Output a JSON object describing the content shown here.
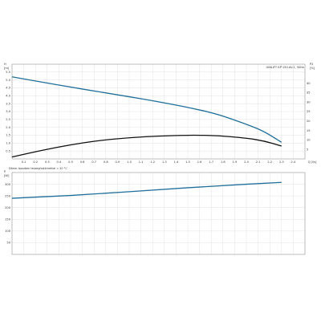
{
  "chart_data": [
    {
      "type": "line",
      "name": "pump-curve",
      "legend": "UNILIFT KP 150.AV.1, 50Hz",
      "x_unit": "Q [l/s]",
      "left_axis_unit": "H\n[m]",
      "right_axis_unit": "P2\n[%]",
      "xlim": [
        0,
        2.5
      ],
      "ylim_left": [
        0,
        6
      ],
      "ylim_right": [
        0,
        50
      ],
      "x_ticks": [
        0.1,
        0.2,
        0.3,
        0.4,
        0.5,
        0.6,
        0.7,
        0.8,
        0.9,
        1.0,
        1.1,
        1.2,
        1.3,
        1.4,
        1.5,
        1.6,
        1.7,
        1.8,
        1.9,
        2.0,
        2.1,
        2.2,
        2.3,
        2.4
      ],
      "x_tick_labels": [
        "0.1",
        "0.2",
        "0.3",
        "0.4",
        "0.5",
        "0.6",
        "0.7",
        "0.8",
        "0.9",
        "1.0",
        "1.1",
        "1.2",
        "1.3",
        "1.4",
        "1.5",
        "1.6",
        "1.7",
        "1.8",
        "1.9",
        "2.0",
        "2.1",
        "2.2",
        "2.3",
        "2.4"
      ],
      "left_ticks": [
        0.5,
        1.0,
        1.5,
        2.0,
        2.5,
        3.0,
        3.5,
        4.0,
        4.5,
        5.0,
        5.5
      ],
      "left_tick_labels": [
        "0.5",
        "1.0",
        "1.5",
        "2.0",
        "2.5",
        "3.0",
        "3.5",
        "4.0",
        "4.5",
        "5.0",
        "5.5"
      ],
      "right_ticks": [
        5,
        10,
        15,
        20,
        25,
        30,
        35,
        40
      ],
      "right_tick_labels": [
        "5",
        "10",
        "15",
        "20",
        "25",
        "30",
        "35",
        "40"
      ],
      "grid": true,
      "series": [
        {
          "color": "#1f6f9a",
          "axis": "left",
          "x": [
            0,
            0.25,
            0.5,
            0.75,
            1.0,
            1.25,
            1.5,
            1.75,
            2.0,
            2.15,
            2.3
          ],
          "y": [
            5.2,
            4.87,
            4.55,
            4.24,
            3.94,
            3.62,
            3.27,
            2.85,
            2.2,
            1.75,
            1.05
          ]
        },
        {
          "color": "#111111",
          "axis": "right",
          "x": [
            0,
            0.25,
            0.5,
            0.75,
            1.0,
            1.25,
            1.5,
            1.6,
            1.75,
            2.0,
            2.15,
            2.3
          ],
          "y": [
            1,
            4.5,
            7.5,
            9.8,
            11.2,
            12.1,
            12.5,
            12.5,
            12.3,
            11.0,
            9.5,
            6.8
          ]
        }
      ]
    },
    {
      "type": "line",
      "name": "power-curve",
      "note": "Dilam: boszben teszeghokkirrelkal = 20 °C",
      "left_axis_unit": "P\n[W]",
      "xlim": [
        0,
        2.5
      ],
      "ylim_left": [
        0,
        350
      ],
      "left_ticks": [
        50,
        100,
        150,
        200,
        250,
        300
      ],
      "left_tick_labels": [
        "50",
        "100",
        "150",
        "200",
        "250",
        "300"
      ],
      "x_ticks": [
        0.1,
        0.2,
        0.3,
        0.4,
        0.5,
        0.6,
        0.7,
        0.8,
        0.9,
        1.0,
        1.1,
        1.2,
        1.3,
        1.4,
        1.5,
        1.6,
        1.7,
        1.8,
        1.9,
        2.0,
        2.1,
        2.2,
        2.3,
        2.4
      ],
      "grid": true,
      "series": [
        {
          "color": "#1f6f9a",
          "axis": "left",
          "x": [
            0,
            0.5,
            1.0,
            1.5,
            2.0,
            2.3
          ],
          "y": [
            240,
            252,
            268,
            285,
            300,
            308
          ]
        }
      ]
    }
  ]
}
